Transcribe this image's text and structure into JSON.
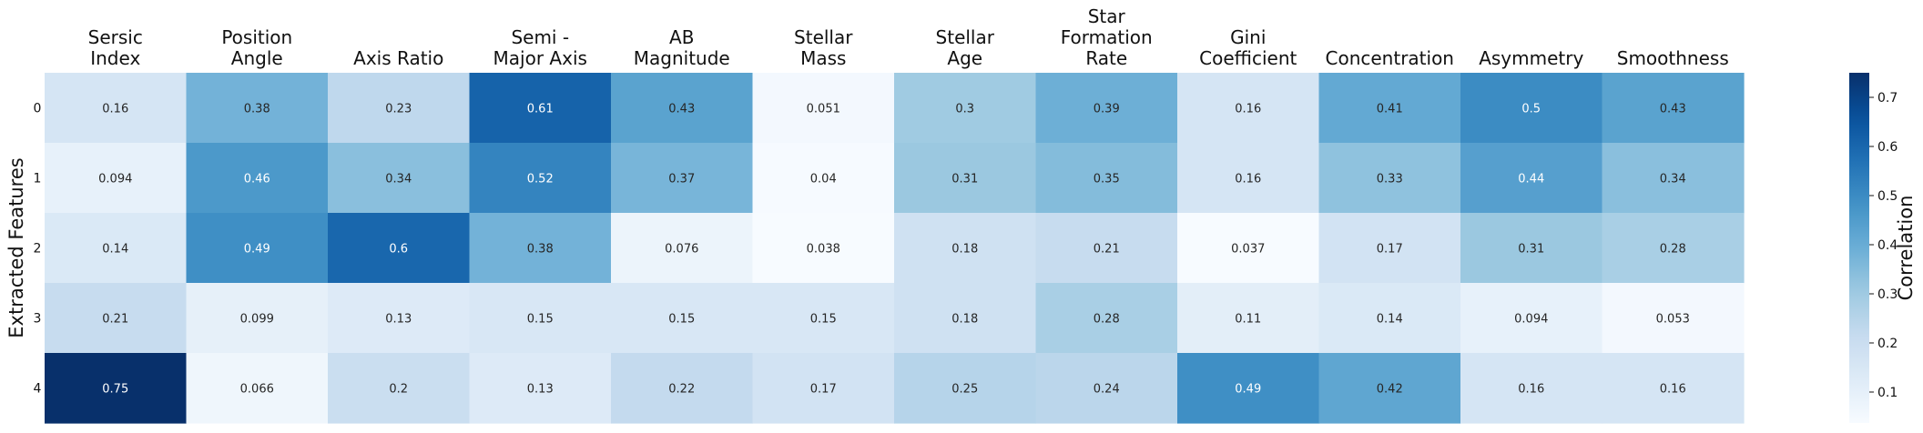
{
  "chart_data": {
    "type": "heatmap",
    "title": "",
    "xlabel": "",
    "ylabel": "Extracted Features",
    "colorbar_label": "Correlation",
    "colormap": "Blues",
    "vmin": 0.037,
    "vmax": 0.75,
    "colorbar_ticks": [
      "0.1",
      "0.2",
      "0.3",
      "0.4",
      "0.5",
      "0.6",
      "0.7"
    ],
    "columns": [
      [
        "Sersic",
        "Index"
      ],
      [
        "Position",
        "Angle"
      ],
      [
        "Axis Ratio"
      ],
      [
        "Semi -",
        "Major Axis"
      ],
      [
        "AB",
        "Magnitude"
      ],
      [
        "Stellar",
        "Mass"
      ],
      [
        "Stellar",
        "Age"
      ],
      [
        "Star",
        "Formation",
        "Rate"
      ],
      [
        "Gini",
        "Coefficient"
      ],
      [
        "Concentration"
      ],
      [
        "Asymmetry"
      ],
      [
        "Smoothness"
      ]
    ],
    "rows": [
      "0",
      "1",
      "2",
      "3",
      "4"
    ],
    "values": [
      [
        0.16,
        0.38,
        0.23,
        0.61,
        0.43,
        0.051,
        0.3,
        0.39,
        0.16,
        0.41,
        0.5,
        0.43
      ],
      [
        0.094,
        0.46,
        0.34,
        0.52,
        0.37,
        0.04,
        0.31,
        0.35,
        0.16,
        0.33,
        0.44,
        0.34
      ],
      [
        0.14,
        0.49,
        0.6,
        0.38,
        0.076,
        0.038,
        0.18,
        0.21,
        0.037,
        0.17,
        0.31,
        0.28
      ],
      [
        0.21,
        0.099,
        0.13,
        0.15,
        0.15,
        0.15,
        0.18,
        0.28,
        0.11,
        0.14,
        0.094,
        0.053
      ],
      [
        0.75,
        0.066,
        0.2,
        0.13,
        0.22,
        0.17,
        0.25,
        0.24,
        0.49,
        0.42,
        0.16,
        0.16
      ]
    ]
  }
}
